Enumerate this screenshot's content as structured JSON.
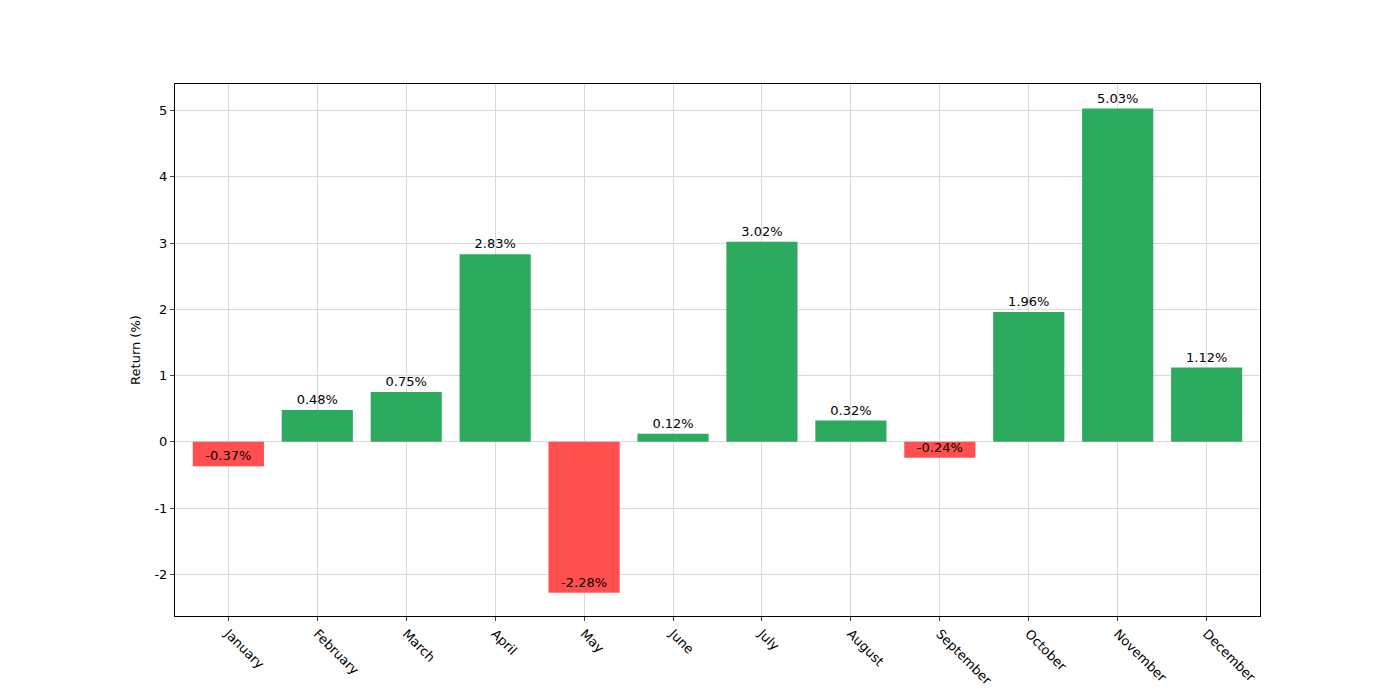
{
  "chart_data": {
    "type": "bar",
    "y_label": "Return (%)",
    "categories": [
      "January",
      "February",
      "March",
      "April",
      "May",
      "June",
      "July",
      "August",
      "September",
      "October",
      "November",
      "December"
    ],
    "values": [
      -0.37,
      0.48,
      0.75,
      2.83,
      -2.28,
      0.12,
      3.02,
      0.32,
      -0.24,
      1.96,
      5.03,
      1.12
    ],
    "value_labels": [
      "-0.37%",
      "0.48%",
      "0.75%",
      "2.83%",
      "-2.28%",
      "0.12%",
      "3.02%",
      "0.32%",
      "-0.24%",
      "1.96%",
      "5.03%",
      "1.12%"
    ],
    "colors": [
      "#ff4f4f",
      "#2cab5f",
      "#2cab5f",
      "#2cab5f",
      "#ff4f4f",
      "#2cab5f",
      "#2cab5f",
      "#2cab5f",
      "#ff4f4f",
      "#2cab5f",
      "#2cab5f",
      "#2cab5f"
    ],
    "ylim": [
      -2.63,
      5.4
    ],
    "yticks": [
      -2,
      -1,
      0,
      1,
      2,
      3,
      4,
      5
    ],
    "grid": true,
    "data_labels": true
  }
}
